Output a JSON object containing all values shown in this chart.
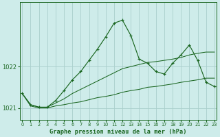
{
  "title": "Graphe pression niveau de la mer (hPa)",
  "bg_color": "#ceecea",
  "grid_color": "#aacfcc",
  "line_color": "#1a6620",
  "hours": [
    0,
    1,
    2,
    3,
    4,
    5,
    6,
    7,
    8,
    9,
    10,
    11,
    12,
    13,
    14,
    15,
    16,
    17,
    18,
    19,
    20,
    21,
    22,
    23
  ],
  "pressure_main": [
    1021.35,
    1021.08,
    1021.02,
    1021.02,
    1021.18,
    1021.42,
    1021.68,
    1021.88,
    1022.15,
    1022.42,
    1022.72,
    1023.05,
    1023.12,
    1022.75,
    1022.18,
    1022.08,
    1021.88,
    1021.82,
    1022.08,
    1022.28,
    1022.52,
    1022.15,
    1021.62,
    1021.52
  ],
  "pressure_upper": [
    1021.35,
    1021.08,
    1021.02,
    1021.02,
    1021.12,
    1021.22,
    1021.35,
    1021.45,
    1021.55,
    1021.65,
    1021.75,
    1021.85,
    1021.95,
    1022.0,
    1022.05,
    1022.1,
    1022.12,
    1022.15,
    1022.18,
    1022.22,
    1022.28,
    1022.32,
    1022.35,
    1022.35
  ],
  "pressure_lower": [
    1021.35,
    1021.05,
    1021.0,
    1021.0,
    1021.05,
    1021.08,
    1021.12,
    1021.15,
    1021.2,
    1021.25,
    1021.28,
    1021.32,
    1021.38,
    1021.42,
    1021.45,
    1021.5,
    1021.52,
    1021.55,
    1021.58,
    1021.62,
    1021.65,
    1021.68,
    1021.72,
    1021.72
  ],
  "ylim_min": 1020.72,
  "ylim_max": 1023.55,
  "yticks": [
    1021,
    1022
  ],
  "xtick_fontsize": 4.8,
  "ytick_fontsize": 6.0,
  "title_fontsize": 6.2
}
